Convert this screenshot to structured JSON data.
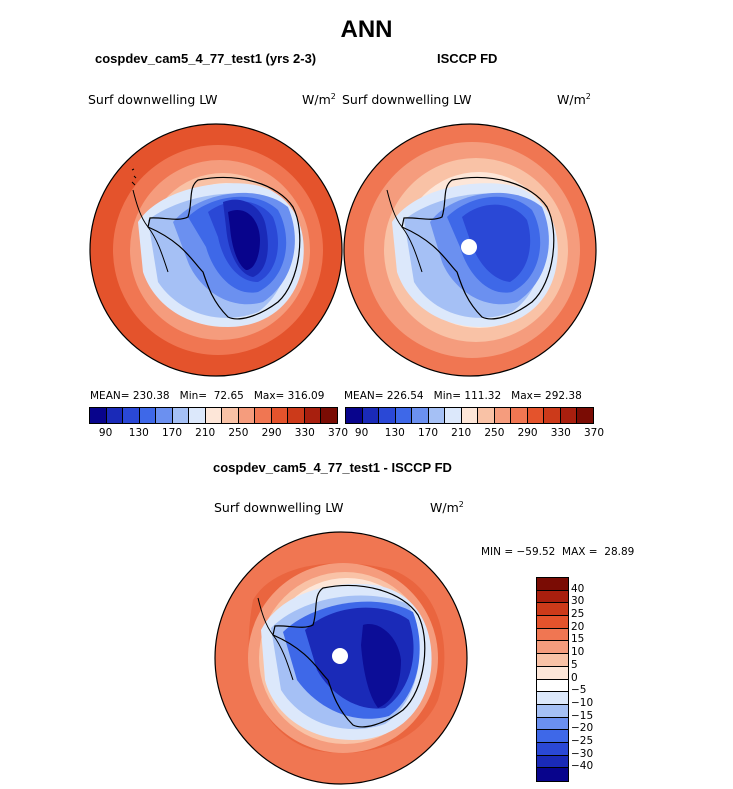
{
  "header": {
    "season": "ANN",
    "model_title": "cospdev_cam5_4_77_test1 (yrs 2-3)",
    "obs_title": "ISCCP FD",
    "diff_title": "cospdev_cam5_4_77_test1 - ISCCP FD"
  },
  "field": {
    "name": "Surf downwelling LW",
    "units_base": "W/m",
    "units_exp": "2"
  },
  "panel_model": {
    "mean": "230.38",
    "min": "72.65",
    "max": "316.09"
  },
  "panel_obs": {
    "mean": "226.54",
    "min": "111.32",
    "max": "292.38"
  },
  "panel_diff": {
    "min_max": "MIN = −59.52  MAX =  28.89"
  },
  "colorbar_abs": {
    "labels": [
      "90",
      "130",
      "170",
      "210",
      "250",
      "290",
      "330",
      "370"
    ],
    "colors": [
      "#08048c",
      "#1a2ab8",
      "#2a48d6",
      "#3e68e8",
      "#6b90f0",
      "#a5c0f5",
      "#dce8fb",
      "#fde6d8",
      "#f9c2a6",
      "#f59c7d",
      "#f07652",
      "#e4532c",
      "#cc3a1a",
      "#a81f0e",
      "#7a0c04"
    ]
  },
  "colorbar_diff": {
    "labels": [
      "40",
      "30",
      "25",
      "20",
      "15",
      "10",
      "5",
      "0",
      "−5",
      "−10",
      "−15",
      "−20",
      "−25",
      "−30",
      "−40"
    ],
    "colors": [
      "#7a0c04",
      "#a81f0e",
      "#cc3a1a",
      "#e4532c",
      "#f07652",
      "#f59c7d",
      "#f9c2a6",
      "#fde6d8",
      "#ffffff",
      "#dce8fb",
      "#a5c0f5",
      "#6b90f0",
      "#3e68e8",
      "#2a48d6",
      "#1a2ab8",
      "#08048c"
    ]
  }
}
